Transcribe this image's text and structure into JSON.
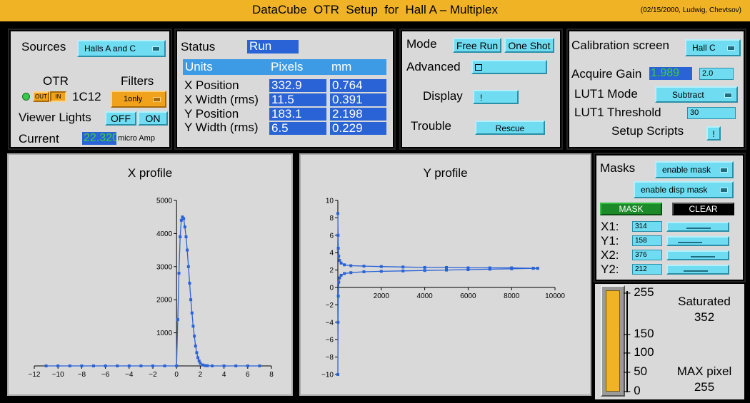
{
  "window": {
    "title": "DataCube  OTR  Setup  for  Hall A – Multiplex",
    "credit": "(02/15/2000, Ludwig, Chevtsov)"
  },
  "sources": {
    "label": "Sources",
    "selected": "Halls A and C",
    "otr_label": "OTR",
    "otr_out": "OUT",
    "otr_in": "IN",
    "otr_code": "1C12",
    "filters_label": "Filters",
    "filters_selected": "1only",
    "viewer_lights_label": "Viewer Lights",
    "off_label": "OFF",
    "on_label": "ON",
    "current_label": "Current",
    "current_value": "22.320",
    "current_unit": "micro Amp",
    "colors": {
      "led": "#34c94a",
      "current_value": "#3ad13a",
      "filter_button": "#f0a21d"
    }
  },
  "status": {
    "label": "Status",
    "value": "Run",
    "columns": [
      "Units",
      "Pixels",
      "mm"
    ],
    "rows": [
      {
        "name": "X Position",
        "pixels": "332.9",
        "mm": "0.764"
      },
      {
        "name": "X Width (rms)",
        "pixels": "11.5",
        "mm": "0.391"
      },
      {
        "name": "Y Position",
        "pixels": "183.1",
        "mm": "2.198"
      },
      {
        "name": "Y Width (rms)",
        "pixels": "6.5",
        "mm": "0.229"
      }
    ]
  },
  "mode": {
    "mode_label": "Mode",
    "free_run": "Free Run",
    "one_shot": "One Shot",
    "advanced_label": "Advanced",
    "display_label": "Display",
    "display_button": "!",
    "trouble_label": "Trouble",
    "rescue_button": "Rescue"
  },
  "calibration": {
    "screen_label": "Calibration screen",
    "screen_selected": "Hall C",
    "gain_label": "Acquire Gain",
    "gain_value": "1.989",
    "gain_input": "2.0",
    "lut_mode_label": "LUT1 Mode",
    "lut_mode_selected": "Subtract",
    "lut_threshold_label": "LUT1 Threshold",
    "lut_threshold_value": "30",
    "setup_scripts_label": "Setup Scripts",
    "setup_scripts_button": "!"
  },
  "masks": {
    "label": "Masks",
    "enable_mask": "enable mask",
    "enable_disp_mask": "enable disp mask",
    "mask_button": "MASK",
    "clear_button": "CLEAR",
    "fields": [
      {
        "name": "X1:",
        "value": "314"
      },
      {
        "name": "Y1:",
        "value": "158"
      },
      {
        "name": "X2:",
        "value": "376"
      },
      {
        "name": "Y2:",
        "value": "212"
      }
    ]
  },
  "intensity": {
    "level": 255,
    "max": 255,
    "ticks": [
      "255",
      "150",
      "100",
      "50",
      "0"
    ],
    "saturated_label": "Saturated",
    "saturated_value": "352",
    "max_pixel_label": "MAX pixel",
    "max_pixel_value": "255",
    "bar_color": "#f1b326"
  },
  "chart_data": [
    {
      "type": "line",
      "title": "X profile",
      "xlim": [
        -12,
        8
      ],
      "ylim": [
        0,
        5000
      ],
      "xticks": [
        -12,
        -10,
        -8,
        -6,
        -4,
        -2,
        0,
        2,
        4,
        6,
        8
      ],
      "yticks": [
        1000,
        2000,
        3000,
        4000,
        5000
      ],
      "series_color": "#2a63d6",
      "x": [
        -11,
        -10,
        -9,
        -8,
        -7,
        -6,
        -5,
        -4,
        -3,
        -2,
        -1,
        0,
        0.1,
        0.2,
        0.3,
        0.4,
        0.5,
        0.6,
        0.7,
        0.8,
        0.9,
        1.0,
        1.1,
        1.2,
        1.3,
        1.4,
        1.5,
        1.6,
        1.7,
        1.8,
        1.9,
        2.0,
        2.2,
        2.4,
        2.6,
        3,
        4,
        5,
        6,
        7
      ],
      "y": [
        0,
        0,
        0,
        0,
        0,
        0,
        0,
        0,
        0,
        0,
        0,
        0,
        1400,
        2800,
        3900,
        4400,
        4500,
        4450,
        4200,
        3900,
        3500,
        3000,
        2500,
        2000,
        1600,
        1200,
        900,
        600,
        400,
        250,
        150,
        80,
        30,
        10,
        5,
        0,
        0,
        0,
        0,
        0
      ]
    },
    {
      "type": "line",
      "title": "Y profile",
      "xlim": [
        0,
        10000
      ],
      "ylim": [
        -10,
        10
      ],
      "xticks": [
        2000,
        4000,
        6000,
        8000,
        10000
      ],
      "yticks": [
        -10,
        -8,
        -6,
        -4,
        -2,
        0,
        2,
        4,
        6,
        8,
        10
      ],
      "series_color": "#2a63d6",
      "series": [
        {
          "x": [
            0,
            10,
            20,
            40,
            80,
            150,
            300,
            600,
            1200,
            2000,
            3000,
            4000,
            5000,
            6000,
            7000,
            8000,
            9000,
            9200
          ],
          "y": [
            8.5,
            6,
            4.5,
            3.6,
            3.1,
            2.8,
            2.6,
            2.5,
            2.45,
            2.4,
            2.35,
            2.3,
            2.3,
            2.25,
            2.25,
            2.25,
            2.2,
            2.2
          ]
        },
        {
          "x": [
            0,
            10,
            20,
            40,
            80,
            150,
            300,
            600,
            1200,
            2000,
            3000,
            4000,
            5000,
            6000,
            7000,
            8000,
            9000,
            9200
          ],
          "y": [
            -10,
            -4,
            -1,
            0.6,
            1.1,
            1.4,
            1.6,
            1.7,
            1.8,
            1.85,
            1.9,
            1.95,
            2.0,
            2.05,
            2.1,
            2.15,
            2.2,
            2.2
          ]
        }
      ]
    }
  ]
}
